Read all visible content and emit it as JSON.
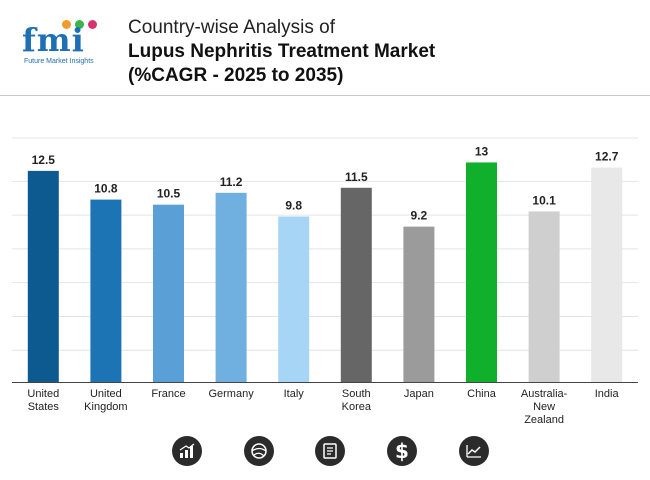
{
  "header": {
    "logo_text": "fmi",
    "logo_subtext": "Future Market Insights",
    "title_line1": "Country-wise Analysis of",
    "title_line2": "Lupus Nephritis Treatment Market",
    "title_line3": "(%CAGR - 2025 to 2035)"
  },
  "chart_data": {
    "type": "bar",
    "title": "Country-wise Analysis of Lupus Nephritis Treatment Market (%CAGR - 2025 to 2035)",
    "categories": [
      "United States",
      "United Kingdom",
      "France",
      "Germany",
      "Italy",
      "South Korea",
      "Japan",
      "China",
      "Australia-New Zealand",
      "India"
    ],
    "category_lines": [
      [
        "United",
        "States"
      ],
      [
        "United",
        "Kingdom"
      ],
      [
        "France"
      ],
      [
        "Germany"
      ],
      [
        "Italy"
      ],
      [
        "South",
        "Korea"
      ],
      [
        "Japan"
      ],
      [
        "China"
      ],
      [
        "Australia-",
        "New",
        "Zealand"
      ],
      [
        "India"
      ]
    ],
    "values": [
      12.5,
      10.8,
      10.5,
      11.2,
      9.8,
      11.5,
      9.2,
      13,
      10.1,
      12.7
    ],
    "value_labels": [
      "12.5",
      "10.8",
      "10.5",
      "11.2",
      "9.8",
      "11.5",
      "9.2",
      "13",
      "10.1",
      "12.7"
    ],
    "colors": [
      "#0d5a91",
      "#1d74b5",
      "#5a9fd6",
      "#6fb0e0",
      "#a7d5f5",
      "#666666",
      "#9b9b9b",
      "#10b02c",
      "#cfcfcf",
      "#e8e8e8"
    ],
    "ylim": [
      0,
      13.5
    ],
    "grid": true,
    "xlabel": "",
    "ylabel": ""
  },
  "footer_icons": [
    "bar-chart-icon",
    "globe-icon",
    "document-icon",
    "dollar-icon",
    "line-chart-icon"
  ]
}
